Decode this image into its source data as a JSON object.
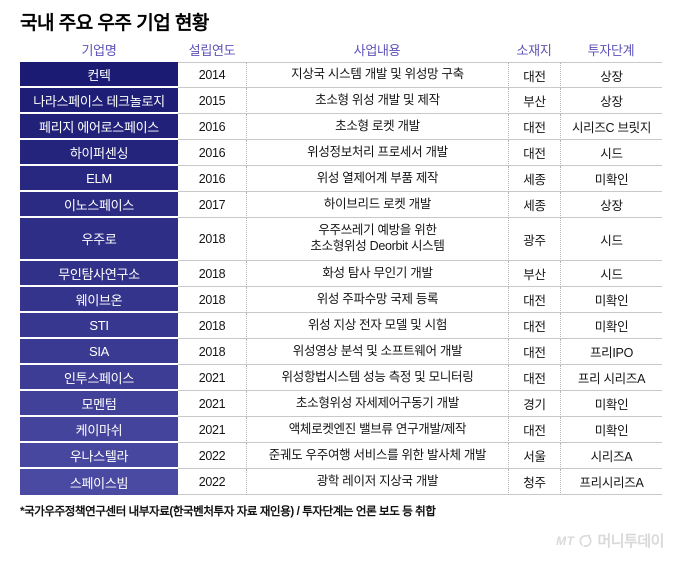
{
  "title": "국내 주요 우주 기업 현황",
  "chart_data": {
    "type": "table",
    "title": "국내 주요 우주 기업 현황",
    "columns": [
      "기업명",
      "설립연도",
      "사업내용",
      "소재지",
      "투자단계"
    ],
    "rows": [
      {
        "name": "컨텍",
        "year": "2014",
        "business": "지상국 시스템 개발 및 위성망 구축",
        "location": "대전",
        "stage": "상장"
      },
      {
        "name": "나라스페이스 테크놀로지",
        "year": "2015",
        "business": "초소형 위성 개발 및 제작",
        "location": "부산",
        "stage": "상장"
      },
      {
        "name": "페리지 에어로스페이스",
        "year": "2016",
        "business": "초소형 로켓 개발",
        "location": "대전",
        "stage": "시리즈C 브릿지"
      },
      {
        "name": "하이퍼센싱",
        "year": "2016",
        "business": "위성정보처리 프로세서 개발",
        "location": "대전",
        "stage": "시드"
      },
      {
        "name": "ELM",
        "year": "2016",
        "business": "위성 열제어계 부품 제작",
        "location": "세종",
        "stage": "미확인"
      },
      {
        "name": "이노스페이스",
        "year": "2017",
        "business": "하이브리드 로켓 개발",
        "location": "세종",
        "stage": "상장"
      },
      {
        "name": "우주로",
        "year": "2018",
        "business": "우주쓰레기 예방을 위한\n초소형위성 Deorbit 시스템",
        "location": "광주",
        "stage": "시드"
      },
      {
        "name": "무인탐사연구소",
        "year": "2018",
        "business": "화성 탐사 무인기 개발",
        "location": "부산",
        "stage": "시드"
      },
      {
        "name": "웨이브온",
        "year": "2018",
        "business": "위성 주파수망 국제 등록",
        "location": "대전",
        "stage": "미확인"
      },
      {
        "name": "STI",
        "year": "2018",
        "business": "위성 지상 전자 모델 및 시험",
        "location": "대전",
        "stage": "미확인"
      },
      {
        "name": "SIA",
        "year": "2018",
        "business": "위성영상 분석 및 소프트웨어 개발",
        "location": "대전",
        "stage": "프리IPO"
      },
      {
        "name": "인투스페이스",
        "year": "2021",
        "business": "위성항법시스템 성능 측정 및 모니터링",
        "location": "대전",
        "stage": "프리 시리즈A"
      },
      {
        "name": "모멘텀",
        "year": "2021",
        "business": "초소형위성 자세제어구동기 개발",
        "location": "경기",
        "stage": "미확인"
      },
      {
        "name": "케이마쉬",
        "year": "2021",
        "business": "액체로켓엔진 밸브류 연구개발/제작",
        "location": "대전",
        "stage": "미확인"
      },
      {
        "name": "우나스텔라",
        "year": "2022",
        "business": "준궤도 우주여행 서비스를 위한 발사체 개발",
        "location": "서울",
        "stage": "시리즈A"
      },
      {
        "name": "스페이스빔",
        "year": "2022",
        "business": "광학 레이저 지상국 개발",
        "location": "청주",
        "stage": "프리시리즈A"
      }
    ]
  },
  "footnote": "*국가우주정책연구센터 내부자료(한국벤처투자 자료 재인용) / 투자단계는 언론 보도 등 취합",
  "logo": {
    "prefix": "MT",
    "name": "머니투데이"
  },
  "colors": {
    "name_col_top": "#1b1b74",
    "name_col_bottom": "#4a4aa2",
    "header_text": "#5c52b8",
    "grid_line": "#c9c9c9"
  }
}
